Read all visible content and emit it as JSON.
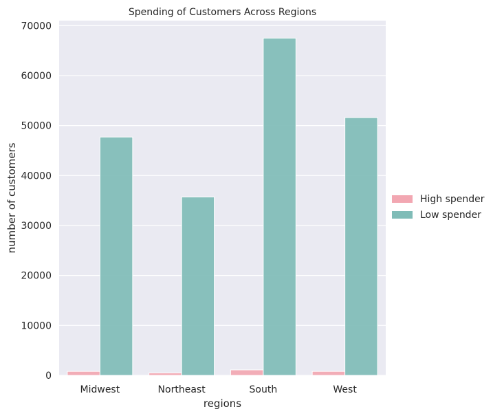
{
  "chart_data": {
    "type": "bar",
    "title": "Spending of Customers Across Regions",
    "xlabel": "regions",
    "ylabel": "number of customers",
    "categories": [
      "Midwest",
      "Northeast",
      "South",
      "West"
    ],
    "series": [
      {
        "name": "High spender",
        "values": [
          800,
          500,
          1100,
          800
        ],
        "color": "#f2a7b2"
      },
      {
        "name": "Low spender",
        "values": [
          47700,
          35700,
          67500,
          51600
        ],
        "color": "#7fbcb7"
      }
    ],
    "ylim": [
      0,
      71000
    ],
    "yticks": [
      0,
      10000,
      20000,
      30000,
      40000,
      50000,
      60000,
      70000
    ],
    "grid": true,
    "legend_position": "right",
    "colors": {
      "background": "#eaeaf2",
      "grid": "#ffffff",
      "text": "#262626"
    }
  }
}
